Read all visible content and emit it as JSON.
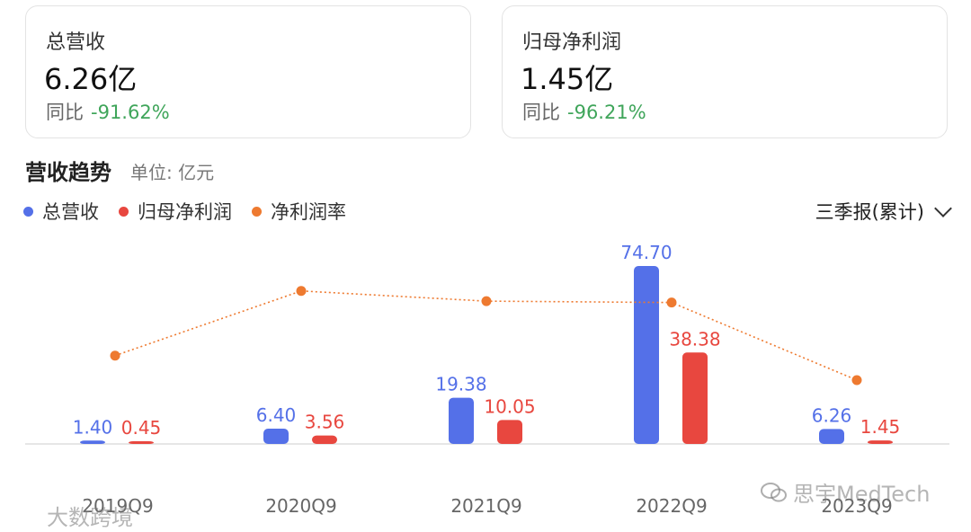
{
  "cards": [
    {
      "label": "总营收",
      "value": "6.26亿",
      "yoy_label": "同比",
      "yoy_value": "-91.62%"
    },
    {
      "label": "归母净利润",
      "value": "1.45亿",
      "yoy_label": "同比",
      "yoy_value": "-96.21%"
    }
  ],
  "section": {
    "title": "营收趋势",
    "unit": "单位: 亿元"
  },
  "period_select": {
    "value": "三季报(累计)"
  },
  "colors": {
    "revenue": "#5470e8",
    "profit": "#e8473f",
    "margin": "#ee7a30",
    "yoy_negative": "#3fa55a"
  },
  "chart_data": {
    "type": "bar",
    "categories": [
      "2019Q9",
      "2020Q9",
      "2021Q9",
      "2022Q9",
      "2023Q9"
    ],
    "series": [
      {
        "name": "总营收",
        "type": "bar",
        "values": [
          1.4,
          6.4,
          19.38,
          74.7,
          6.26
        ],
        "labels": [
          "1.40",
          "6.40",
          "19.38",
          "74.70",
          "6.26"
        ]
      },
      {
        "name": "归母净利润",
        "type": "bar",
        "values": [
          0.45,
          3.56,
          10.05,
          38.38,
          1.45
        ],
        "labels": [
          "0.45",
          "3.56",
          "10.05",
          "38.38",
          "1.45"
        ]
      },
      {
        "name": "净利润率",
        "type": "line",
        "style": "dotted",
        "values": [
          32.1,
          55.6,
          51.9,
          51.4,
          23.2
        ],
        "unit": "%"
      }
    ],
    "ylim": [
      0,
      80
    ],
    "margin_ylim": [
      0,
      65
    ],
    "grid": false,
    "legend_position": "top-left"
  },
  "watermarks": [
    "大数跨境",
    "思宇MedTech"
  ]
}
